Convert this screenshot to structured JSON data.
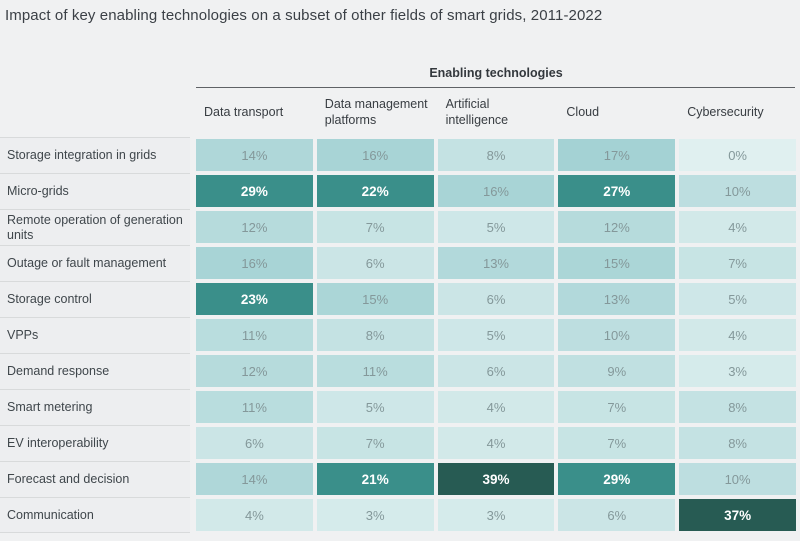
{
  "title": "Impact of key enabling technologies on a subset of other fields of smart grids, 2011-2022",
  "table": {
    "group_header": "Enabling technologies",
    "columns": [
      "Data transport",
      "Data management platforms",
      "Artificial intelligence",
      "Cloud",
      "Cybersecurity"
    ],
    "rows": [
      {
        "label": "Storage integration in grids",
        "values": [
          14,
          16,
          8,
          17,
          0
        ]
      },
      {
        "label": "Micro-grids",
        "values": [
          29,
          22,
          16,
          27,
          10
        ]
      },
      {
        "label": "Remote operation of generation units",
        "values": [
          12,
          7,
          5,
          12,
          4
        ]
      },
      {
        "label": "Outage or fault management",
        "values": [
          16,
          6,
          13,
          15,
          7
        ]
      },
      {
        "label": "Storage control",
        "values": [
          23,
          15,
          6,
          13,
          5
        ]
      },
      {
        "label": "VPPs",
        "values": [
          11,
          8,
          5,
          10,
          4
        ]
      },
      {
        "label": "Demand response",
        "values": [
          12,
          11,
          6,
          9,
          3
        ]
      },
      {
        "label": "Smart metering",
        "values": [
          11,
          5,
          4,
          7,
          8
        ]
      },
      {
        "label": "EV interoperability",
        "values": [
          6,
          7,
          4,
          7,
          8
        ]
      },
      {
        "label": "Forecast and decision",
        "values": [
          14,
          21,
          39,
          29,
          10
        ]
      },
      {
        "label": "Communication",
        "values": [
          4,
          3,
          3,
          6,
          37
        ]
      }
    ],
    "unit": "%"
  },
  "chart_data": {
    "type": "heatmap",
    "title": "Impact of key enabling technologies on a subset of other fields of smart grids, 2011-2022",
    "x_categories": [
      "Data transport",
      "Data management platforms",
      "Artificial intelligence",
      "Cloud",
      "Cybersecurity"
    ],
    "x_group_label": "Enabling technologies",
    "y_categories": [
      "Storage integration in grids",
      "Micro-grids",
      "Remote operation of generation units",
      "Outage or fault management",
      "Storage control",
      "VPPs",
      "Demand response",
      "Smart metering",
      "EV interoperability",
      "Forecast and decision",
      "Communication"
    ],
    "values": [
      [
        14,
        16,
        8,
        17,
        0
      ],
      [
        29,
        22,
        16,
        27,
        10
      ],
      [
        12,
        7,
        5,
        12,
        4
      ],
      [
        16,
        6,
        13,
        15,
        7
      ],
      [
        23,
        15,
        6,
        13,
        5
      ],
      [
        11,
        8,
        5,
        10,
        4
      ],
      [
        12,
        11,
        6,
        9,
        3
      ],
      [
        11,
        5,
        4,
        7,
        8
      ],
      [
        6,
        7,
        4,
        7,
        8
      ],
      [
        14,
        21,
        39,
        29,
        10
      ],
      [
        4,
        3,
        3,
        6,
        37
      ]
    ],
    "unit": "%",
    "value_range": [
      0,
      39
    ],
    "grid": false,
    "legend": "none",
    "palette": {
      "low": "#e0f0f0",
      "mid": "#a4d2d4",
      "high": "#3a8f8a",
      "highest": "#275b53",
      "cell_text": "#84989a",
      "dark_cell_text": "#ffffff",
      "label_bg": "#edeef0",
      "separator": "#d8dadb",
      "rule": "#5f6266",
      "page_bg": "#f0f1f2",
      "heading_text": "#3b4046"
    },
    "color_rule": "0-17 interpolate low to mid; >=20 high with white bold text; >=35 highest with white bold text"
  }
}
